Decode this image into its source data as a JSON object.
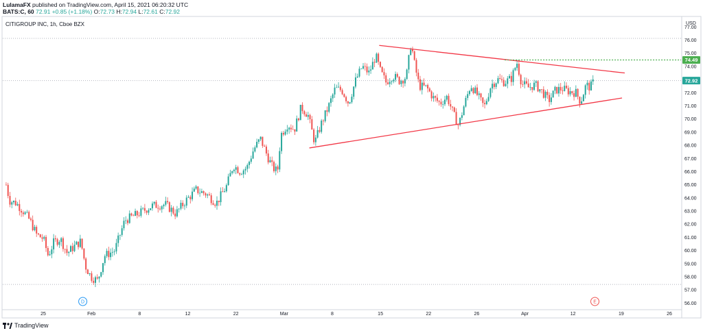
{
  "header": {
    "author": "LulamaFX",
    "published_text": "published on TradingView.com, April 15, 2021 06:20:32 UTC",
    "symbol": "BATS:C, 60",
    "last": "72.91",
    "change": "+0.85 (+1.18%)",
    "open_label": "O:",
    "open": "72.73",
    "high_label": "H:",
    "high": "72.94",
    "low_label": "L:",
    "low": "72.61",
    "close_label": "C:",
    "close": "72.92"
  },
  "symbol_title": "CITIGROUP INC, 1h, Cboe BZX",
  "footer": {
    "brand": "TradingView"
  },
  "colors": {
    "up": "#26a69a",
    "down": "#ef5350",
    "trendline": "#f23645",
    "resistance": "#4caf50",
    "grid": "#b2b5be"
  },
  "chart_data": {
    "type": "candlestick",
    "currency": "USD",
    "ylim": [
      55.5,
      77.8
    ],
    "y_ticks": [
      "77.00",
      "76.00",
      "75.00",
      "74.00",
      "73.00",
      "72.00",
      "71.00",
      "70.00",
      "69.00",
      "68.00",
      "67.00",
      "66.00",
      "65.00",
      "64.00",
      "63.00",
      "62.00",
      "61.00",
      "60.00",
      "59.00",
      "58.00",
      "57.00",
      "56.00"
    ],
    "x_ticks": [
      "25",
      "Feb",
      "8",
      "12",
      "22",
      "Mar",
      "8",
      "15",
      "22",
      "26",
      "Apr",
      "12",
      "19",
      "26"
    ],
    "price_labels": [
      {
        "value": 74.49,
        "text": "74.49",
        "color": "#4caf50"
      },
      {
        "value": 72.92,
        "text": "72.92",
        "color": "#26a69a"
      }
    ],
    "horizontal_dotted_lines": [
      76.13,
      72.92,
      57.42
    ],
    "resistance_line": 74.49,
    "trendlines": [
      {
        "name": "upper",
        "from": [
          0.555,
          75.6
        ],
        "to": [
          0.917,
          73.5
        ]
      },
      {
        "name": "lower",
        "from": [
          0.452,
          67.8
        ],
        "to": [
          0.913,
          71.6
        ]
      }
    ],
    "markers": [
      {
        "label": "D",
        "x": 0.118,
        "color": "#2196f3"
      },
      {
        "label": "E",
        "x": 0.873,
        "color": "#ef5350"
      }
    ],
    "series": [
      {
        "x": 0.005,
        "close": 65.0
      },
      {
        "x": 0.01,
        "close": 63.8
      },
      {
        "x": 0.02,
        "close": 63.6
      },
      {
        "x": 0.03,
        "close": 63.0
      },
      {
        "x": 0.04,
        "close": 62.3
      },
      {
        "x": 0.05,
        "close": 61.2
      },
      {
        "x": 0.06,
        "close": 60.9
      },
      {
        "x": 0.067,
        "close": 59.6
      },
      {
        "x": 0.075,
        "close": 60.6
      },
      {
        "x": 0.085,
        "close": 60.9
      },
      {
        "x": 0.095,
        "close": 59.8
      },
      {
        "x": 0.105,
        "close": 60.3
      },
      {
        "x": 0.115,
        "close": 60.7
      },
      {
        "x": 0.122,
        "close": 58.8
      },
      {
        "x": 0.13,
        "close": 58.0
      },
      {
        "x": 0.14,
        "close": 57.7
      },
      {
        "x": 0.15,
        "close": 59.6
      },
      {
        "x": 0.165,
        "close": 60.0
      },
      {
        "x": 0.18,
        "close": 62.3
      },
      {
        "x": 0.2,
        "close": 62.8
      },
      {
        "x": 0.22,
        "close": 63.4
      },
      {
        "x": 0.24,
        "close": 63.5
      },
      {
        "x": 0.255,
        "close": 62.8
      },
      {
        "x": 0.27,
        "close": 63.8
      },
      {
        "x": 0.285,
        "close": 64.6
      },
      {
        "x": 0.3,
        "close": 64.3
      },
      {
        "x": 0.315,
        "close": 63.6
      },
      {
        "x": 0.33,
        "close": 64.9
      },
      {
        "x": 0.34,
        "close": 66.5
      },
      {
        "x": 0.35,
        "close": 66.0
      },
      {
        "x": 0.36,
        "close": 66.3
      },
      {
        "x": 0.37,
        "close": 67.7
      },
      {
        "x": 0.38,
        "close": 68.5
      },
      {
        "x": 0.39,
        "close": 67.2
      },
      {
        "x": 0.398,
        "close": 66.3
      },
      {
        "x": 0.405,
        "close": 66.0
      },
      {
        "x": 0.41,
        "close": 68.8
      },
      {
        "x": 0.42,
        "close": 69.6
      },
      {
        "x": 0.43,
        "close": 69.2
      },
      {
        "x": 0.44,
        "close": 70.9
      },
      {
        "x": 0.45,
        "close": 70.3
      },
      {
        "x": 0.46,
        "close": 68.2
      },
      {
        "x": 0.47,
        "close": 69.7
      },
      {
        "x": 0.48,
        "close": 70.9
      },
      {
        "x": 0.49,
        "close": 72.3
      },
      {
        "x": 0.5,
        "close": 72.2
      },
      {
        "x": 0.51,
        "close": 71.2
      },
      {
        "x": 0.52,
        "close": 72.9
      },
      {
        "x": 0.53,
        "close": 74.0
      },
      {
        "x": 0.54,
        "close": 73.5
      },
      {
        "x": 0.55,
        "close": 74.8
      },
      {
        "x": 0.557,
        "close": 73.6
      },
      {
        "x": 0.565,
        "close": 72.8
      },
      {
        "x": 0.575,
        "close": 73.3
      },
      {
        "x": 0.585,
        "close": 72.9
      },
      {
        "x": 0.595,
        "close": 73.2
      },
      {
        "x": 0.602,
        "close": 75.8
      },
      {
        "x": 0.607,
        "close": 74.2
      },
      {
        "x": 0.614,
        "close": 72.5
      },
      {
        "x": 0.625,
        "close": 72.4
      },
      {
        "x": 0.635,
        "close": 71.6
      },
      {
        "x": 0.645,
        "close": 71.2
      },
      {
        "x": 0.655,
        "close": 71.7
      },
      {
        "x": 0.665,
        "close": 70.3
      },
      {
        "x": 0.672,
        "close": 69.5
      },
      {
        "x": 0.68,
        "close": 71.0
      },
      {
        "x": 0.69,
        "close": 72.6
      },
      {
        "x": 0.7,
        "close": 71.8
      },
      {
        "x": 0.71,
        "close": 70.9
      },
      {
        "x": 0.72,
        "close": 72.6
      },
      {
        "x": 0.73,
        "close": 73.0
      },
      {
        "x": 0.74,
        "close": 72.8
      },
      {
        "x": 0.75,
        "close": 73.1
      },
      {
        "x": 0.758,
        "close": 74.3
      },
      {
        "x": 0.765,
        "close": 72.7
      },
      {
        "x": 0.775,
        "close": 72.4
      },
      {
        "x": 0.785,
        "close": 72.6
      },
      {
        "x": 0.795,
        "close": 72.1
      },
      {
        "x": 0.805,
        "close": 71.4
      },
      {
        "x": 0.815,
        "close": 72.2
      },
      {
        "x": 0.825,
        "close": 72.3
      },
      {
        "x": 0.835,
        "close": 72.1
      },
      {
        "x": 0.845,
        "close": 72.0
      },
      {
        "x": 0.852,
        "close": 71.3
      },
      {
        "x": 0.86,
        "close": 72.6
      },
      {
        "x": 0.866,
        "close": 72.4
      },
      {
        "x": 0.872,
        "close": 72.92
      }
    ]
  }
}
